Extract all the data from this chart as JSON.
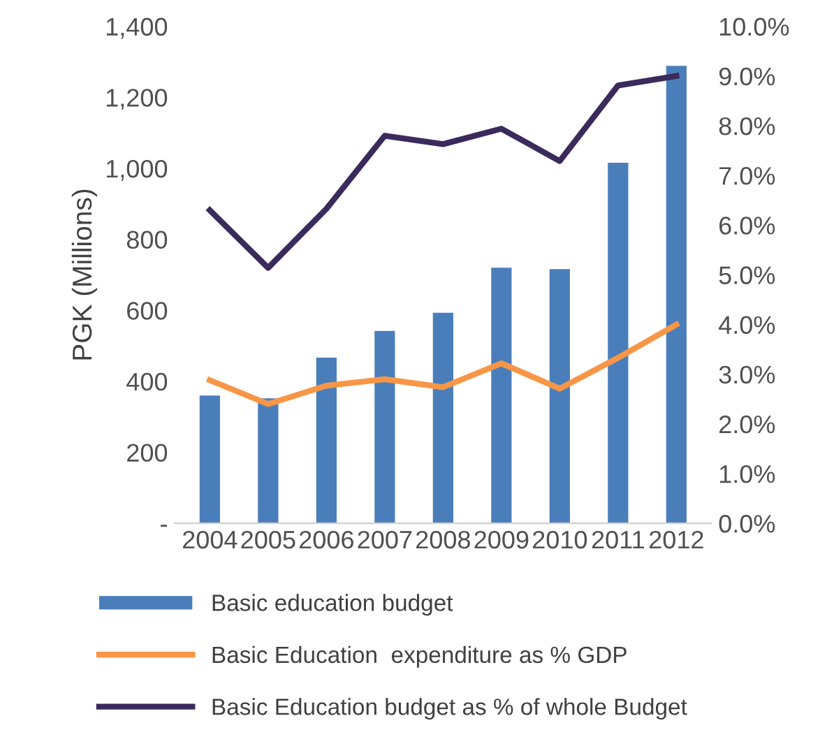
{
  "chart_data": {
    "type": "bar",
    "ylabel": "PGK (Millions)",
    "categories": [
      "2004",
      "2005",
      "2006",
      "2007",
      "2008",
      "2009",
      "2010",
      "2011",
      "2012"
    ],
    "series": [
      {
        "name": "Basic education budget",
        "color": "#4a7ebb",
        "values": [
          360,
          352,
          467,
          542,
          593,
          720,
          716,
          1016,
          1289
        ]
      },
      {
        "name": "Basic Education  expenditure as % GDP",
        "type": "line",
        "axis": "y2",
        "color": "#f79646",
        "values": [
          2.88,
          2.4,
          2.77,
          2.9,
          2.74,
          3.22,
          2.71,
          3.33,
          4.0
        ]
      },
      {
        "name": "Basic Education budget as % of whole Budget",
        "type": "line",
        "axis": "y2",
        "color": "#3b2a5c",
        "values": [
          6.3,
          5.14,
          6.33,
          7.8,
          7.63,
          7.94,
          7.29,
          8.81,
          9.0
        ]
      }
    ],
    "ylim": [
      0,
      1400
    ],
    "yticks": [
      {
        "value": 0,
        "label": "-"
      },
      {
        "value": 200,
        "label": "200"
      },
      {
        "value": 400,
        "label": "400"
      },
      {
        "value": 600,
        "label": "600"
      },
      {
        "value": 800,
        "label": "800"
      },
      {
        "value": 1000,
        "label": "1,000"
      },
      {
        "value": 1200,
        "label": "1,200"
      },
      {
        "value": 1400,
        "label": "1,400"
      }
    ],
    "y2lim": [
      0,
      10
    ],
    "y2ticks": [
      {
        "value": 0,
        "label": "0.0%"
      },
      {
        "value": 1,
        "label": "1.0%"
      },
      {
        "value": 2,
        "label": "2.0%"
      },
      {
        "value": 3,
        "label": "3.0%"
      },
      {
        "value": 4,
        "label": "4.0%"
      },
      {
        "value": 5,
        "label": "5.0%"
      },
      {
        "value": 6,
        "label": "6.0%"
      },
      {
        "value": 7,
        "label": "7.0%"
      },
      {
        "value": 8,
        "label": "8.0%"
      },
      {
        "value": 9,
        "label": "9.0%"
      },
      {
        "value": 10,
        "label": "10.0%"
      }
    ],
    "legend": "bottom",
    "grid": false
  }
}
